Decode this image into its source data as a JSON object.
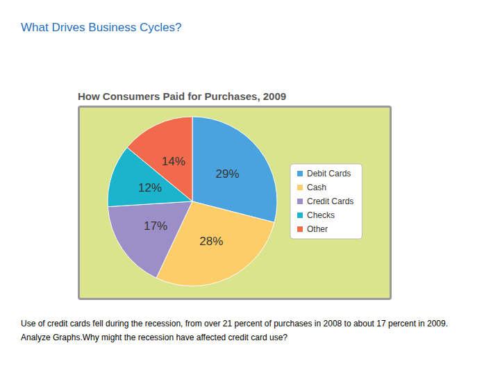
{
  "heading": "What Drives Business Cycles?",
  "chart_data": {
    "type": "pie",
    "title": "How Consumers Paid for Purchases, 2009",
    "categories": [
      "Debit Cards",
      "Cash",
      "Credit Cards",
      "Checks",
      "Other"
    ],
    "values": [
      29,
      28,
      17,
      12,
      14
    ],
    "value_labels": [
      "29%",
      "28%",
      "17%",
      "12%",
      "14%"
    ],
    "colors": [
      "#4aa3de",
      "#fdcd6a",
      "#9c8ec6",
      "#1cb3cc",
      "#f26a4c"
    ],
    "legend": "right",
    "data_labels": true
  },
  "caption": "Use of credit cards fell during the recession, from over 21 percent of purchases in 2008 to about 17 percent in 2009. Analyze Graphs.Why might the recession have affected credit card use?"
}
